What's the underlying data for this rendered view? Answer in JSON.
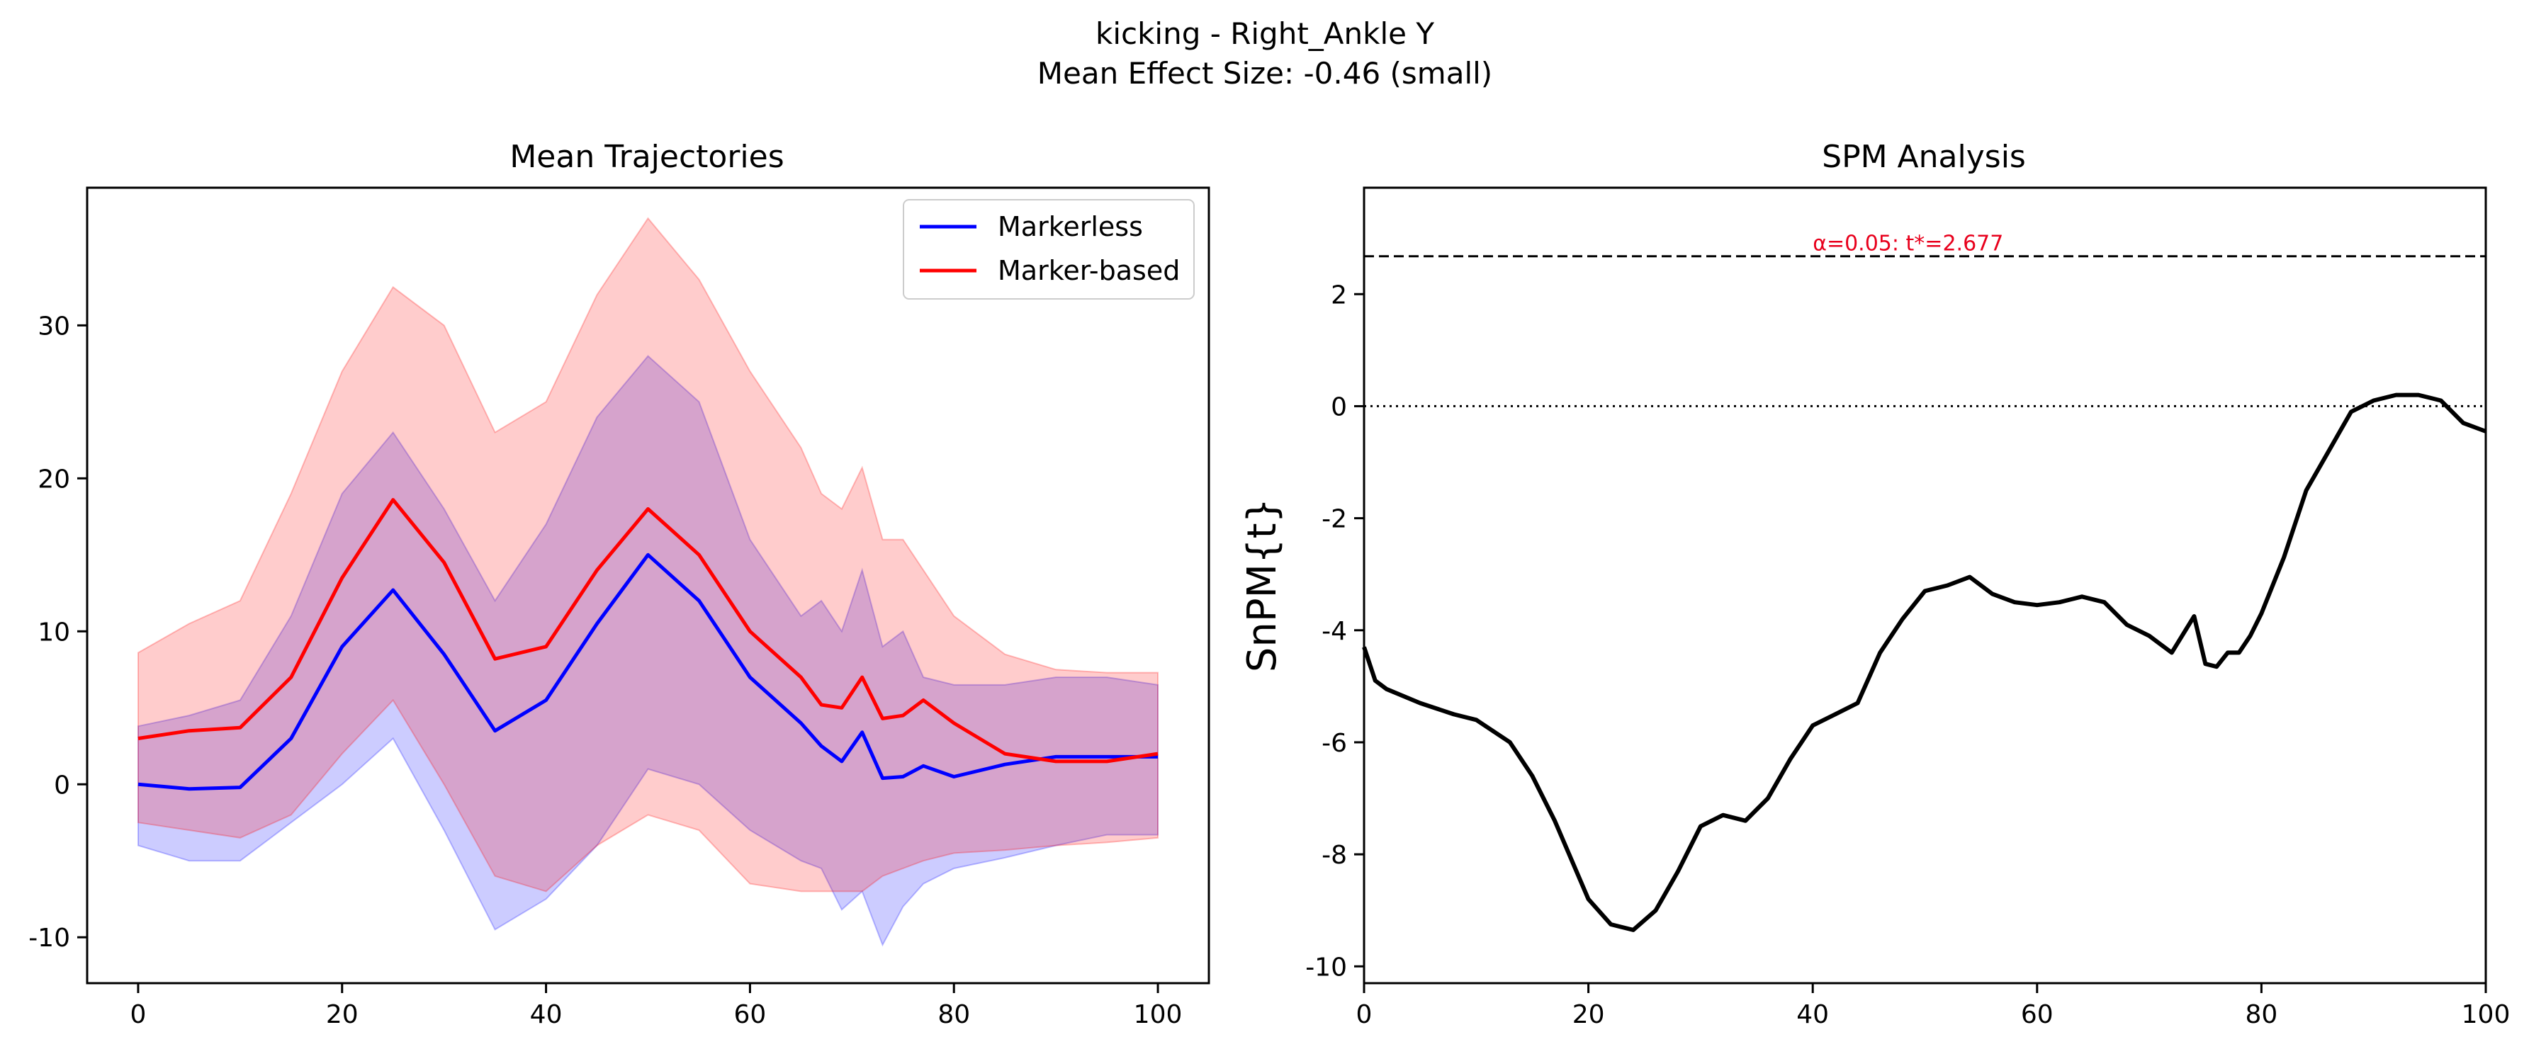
{
  "figure": {
    "title_line1": "kicking - Right_Ankle Y",
    "title_line2": "Mean Effect Size: -0.46 (small)"
  },
  "colors": {
    "markerless": "#0000ff",
    "marker_based": "#ff0000",
    "band_markerless": "#0000ff",
    "band_marker_based": "#ff0000",
    "spm_line": "#000000",
    "threshold_line": "#000000",
    "annotation": "#e8001c"
  },
  "chart_data": [
    {
      "type": "line",
      "title": "Mean Trajectories",
      "xlabel": "",
      "ylabel": "",
      "xlim": [
        -5,
        105
      ],
      "ylim": [
        -13,
        39
      ],
      "xticks": [
        0,
        20,
        40,
        60,
        80,
        100
      ],
      "yticks": [
        -10,
        0,
        10,
        20,
        30
      ],
      "grid": false,
      "legend_position": "top-right",
      "x": [
        0,
        5,
        10,
        15,
        20,
        25,
        30,
        35,
        40,
        45,
        50,
        55,
        60,
        65,
        67,
        69,
        71,
        73,
        75,
        77,
        80,
        85,
        90,
        95,
        100
      ],
      "series": [
        {
          "name": "Markerless",
          "color": "#0000ff",
          "values": [
            0,
            -0.3,
            -0.2,
            3,
            9,
            12.7,
            8.5,
            3.5,
            5.5,
            10.5,
            15,
            12,
            7,
            4,
            2.5,
            1.5,
            3.4,
            0.4,
            0.5,
            1.2,
            0.5,
            1.3,
            1.8,
            1.8,
            1.8
          ],
          "band_upper": [
            3.8,
            4.5,
            5.5,
            11,
            19,
            23,
            18,
            12,
            17,
            24,
            28,
            25,
            16,
            11,
            12,
            10,
            14,
            9,
            10,
            7,
            6.5,
            6.5,
            7,
            7,
            6.5
          ],
          "band_lower": [
            -4,
            -5,
            -5,
            -2.5,
            0,
            3,
            -3,
            -9.5,
            -7.5,
            -4,
            1,
            0,
            -3,
            -5,
            -5.5,
            -8.2,
            -7,
            -10.5,
            -8,
            -6.5,
            -5.5,
            -4.8,
            -4,
            -3.3,
            -3.3
          ]
        },
        {
          "name": "Marker-based",
          "color": "#ff0000",
          "values": [
            3,
            3.5,
            3.7,
            7,
            13.5,
            18.6,
            14.5,
            8.2,
            9,
            14,
            18,
            15,
            10,
            7,
            5.2,
            5,
            7,
            4.3,
            4.5,
            5.5,
            4,
            2,
            1.5,
            1.5,
            2
          ],
          "band_upper": [
            8.6,
            10.5,
            12,
            19,
            27,
            32.5,
            30,
            23,
            25,
            32,
            37,
            33,
            27,
            22,
            19,
            18,
            20.7,
            16,
            16,
            14,
            11,
            8.5,
            7.5,
            7.3,
            7.3
          ],
          "band_lower": [
            -2.5,
            -3,
            -3.5,
            -2,
            2,
            5.5,
            0,
            -6,
            -7,
            -4,
            -2,
            -3,
            -6.5,
            -7,
            -7,
            -7,
            -7,
            -6,
            -5.5,
            -5,
            -4.5,
            -4.3,
            -4,
            -3.8,
            -3.5
          ]
        }
      ]
    },
    {
      "type": "line",
      "title": "SPM Analysis",
      "xlabel": "",
      "ylabel": "SnPM{t}",
      "xlim": [
        0,
        100
      ],
      "ylim": [
        -10.3,
        3.9
      ],
      "xticks": [
        0,
        20,
        40,
        60,
        80,
        100
      ],
      "yticks": [
        -10,
        -8,
        -6,
        -4,
        -2,
        0,
        2
      ],
      "grid": false,
      "threshold": 2.677,
      "threshold_label": "α=0.05:  t*=2.677",
      "zero_line": 0,
      "x": [
        0,
        1,
        2,
        5,
        8,
        10,
        13,
        15,
        17,
        20,
        22,
        24,
        26,
        28,
        30,
        32,
        34,
        36,
        38,
        40,
        42,
        44,
        46,
        48,
        50,
        52,
        54,
        56,
        58,
        60,
        62,
        64,
        66,
        68,
        70,
        72,
        74,
        75,
        76,
        77,
        78,
        79,
        80,
        82,
        84,
        86,
        88,
        90,
        92,
        94,
        96,
        98,
        100
      ],
      "series": [
        {
          "name": "",
          "color": "#000000",
          "values": [
            -4.3,
            -4.9,
            -5.05,
            -5.3,
            -5.5,
            -5.6,
            -6.0,
            -6.6,
            -7.4,
            -8.8,
            -9.25,
            -9.35,
            -9.0,
            -8.3,
            -7.5,
            -7.3,
            -7.4,
            -7.0,
            -6.3,
            -5.7,
            -5.5,
            -5.3,
            -4.4,
            -3.8,
            -3.3,
            -3.2,
            -3.05,
            -3.35,
            -3.5,
            -3.55,
            -3.5,
            -3.4,
            -3.5,
            -3.9,
            -4.1,
            -4.4,
            -3.75,
            -4.6,
            -4.65,
            -4.4,
            -4.4,
            -4.1,
            -3.7,
            -2.7,
            -1.5,
            -0.8,
            -0.1,
            0.1,
            0.2,
            0.2,
            0.1,
            -0.3,
            -0.45
          ]
        }
      ]
    }
  ]
}
